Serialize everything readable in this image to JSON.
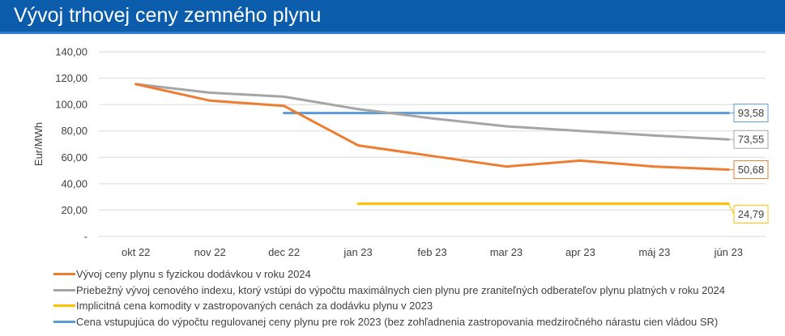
{
  "header": {
    "title": "Vývoj trhovej ceny zemného plynu"
  },
  "colors": {
    "title_bar": "#0b5cab",
    "grid": "#d9d9d9",
    "text": "#404040"
  },
  "chart_data": {
    "type": "line",
    "title": "",
    "xlabel": "",
    "ylabel": "Eur/MWh",
    "categories": [
      "okt 22",
      "nov 22",
      "dec 22",
      "jan 23",
      "feb 23",
      "mar 23",
      "apr 23",
      "máj 23",
      "jún 23"
    ],
    "y_ticks": [
      "-",
      "20,00",
      "40,00",
      "60,00",
      "80,00",
      "100,00",
      "120,00",
      "140,00"
    ],
    "ylim": [
      0,
      140
    ],
    "grid": "horizontal",
    "legend_position": "bottom",
    "series": [
      {
        "name": "Vývoj ceny plynu s fyzickou dodávkou v roku 2024",
        "color": "#ed7d31",
        "values": [
          115.5,
          103,
          99,
          69,
          61,
          53,
          57.5,
          53,
          50.68
        ],
        "end_label": "50,68"
      },
      {
        "name": "Priebežný vývoj cenového indexu, ktorý vstúpi do výpočtu maximálnych cien plynu pre zraniteľných odberateľov plynu platných v roku 2024",
        "color": "#a5a5a5",
        "values": [
          115.5,
          109,
          106,
          96.5,
          89.5,
          83.5,
          80,
          76.5,
          73.55
        ],
        "end_label": "73,55"
      },
      {
        "name": "Implicitná cena komodity v zastropovaných cenách za dodávku plynu v 2023",
        "color": "#ffc000",
        "values": [
          null,
          null,
          null,
          24.79,
          24.79,
          24.79,
          24.79,
          24.79,
          24.79
        ],
        "end_label": "24,79"
      },
      {
        "name": "Cena vstupujúca do výpočtu regulovanej ceny plynu pre rok 2023 (bez zohľadnenia zastropovania medziročného nárastu cien vládou SR)",
        "color": "#5b9bd5",
        "values": [
          null,
          null,
          93.58,
          93.58,
          93.58,
          93.58,
          93.58,
          93.58,
          93.58
        ],
        "end_label": "93,58"
      }
    ]
  }
}
